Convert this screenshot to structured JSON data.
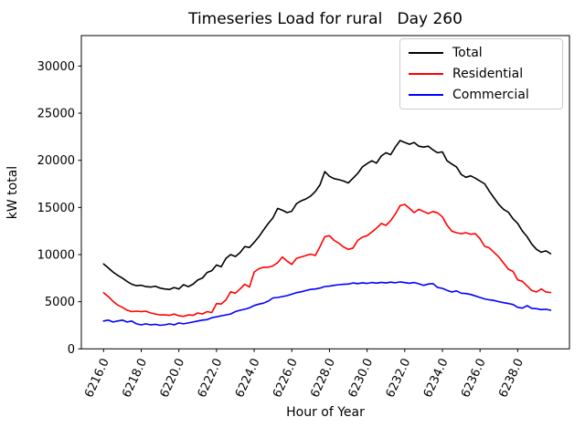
{
  "window": {
    "background_color": "#ffffff"
  },
  "chart_data": {
    "type": "line",
    "title": "Timeseries Load for rural   Day 260",
    "xlabel": "Hour of Year",
    "ylabel": "kW total",
    "grid": false,
    "legend_position": "upper right",
    "xlim": [
      6214.82,
      6240.75
    ],
    "ylim": [
      0,
      33230
    ],
    "xticks": [
      6216.0,
      6218.0,
      6220.0,
      6222.0,
      6224.0,
      6226.0,
      6228.0,
      6230.0,
      6232.0,
      6234.0,
      6236.0,
      6238.0
    ],
    "xtick_labels": [
      "6216.0",
      "6218.0",
      "6220.0",
      "6222.0",
      "6224.0",
      "6226.0",
      "6228.0",
      "6230.0",
      "6232.0",
      "6234.0",
      "6236.0",
      "6238.0"
    ],
    "yticks": [
      0,
      5000,
      10000,
      15000,
      20000,
      25000,
      30000
    ],
    "ytick_labels": [
      "0",
      "5000",
      "10000",
      "15000",
      "20000",
      "25000",
      "30000"
    ],
    "x": {
      "start": 6216.0,
      "step": 0.25,
      "count": 96
    },
    "series": [
      {
        "name": "Total",
        "color": "#000000",
        "values": [
          9000,
          8600,
          8150,
          7800,
          7500,
          7150,
          6850,
          6700,
          6750,
          6600,
          6550,
          6650,
          6450,
          6350,
          6300,
          6500,
          6350,
          6800,
          6600,
          6850,
          7300,
          7500,
          8100,
          8300,
          8900,
          8700,
          9600,
          10000,
          9800,
          10200,
          10850,
          10750,
          11300,
          11900,
          12600,
          13300,
          13900,
          14900,
          14700,
          14450,
          14600,
          15400,
          15700,
          15900,
          16200,
          16700,
          17400,
          18800,
          18300,
          18050,
          17950,
          17800,
          17600,
          18100,
          18600,
          19300,
          19650,
          19950,
          19700,
          20450,
          20800,
          20600,
          21400,
          22100,
          21900,
          21700,
          21900,
          21500,
          21400,
          21500,
          21100,
          20800,
          20900,
          19950,
          19600,
          19300,
          18500,
          18200,
          18350,
          18100,
          17800,
          17500,
          16700,
          16000,
          15300,
          14800,
          14500,
          13800,
          13300,
          12500,
          11900,
          11100,
          10550,
          10250,
          10400,
          10100
        ]
      },
      {
        "name": "Residential",
        "color": "#ff0000",
        "values": [
          5950,
          5550,
          5050,
          4650,
          4400,
          4100,
          3950,
          4000,
          3950,
          4000,
          3800,
          3700,
          3600,
          3600,
          3550,
          3700,
          3500,
          3450,
          3600,
          3550,
          3800,
          3700,
          3950,
          3850,
          4800,
          4750,
          5200,
          6050,
          5900,
          6350,
          6850,
          6550,
          8150,
          8500,
          8650,
          8650,
          8800,
          9150,
          9750,
          9300,
          8950,
          9600,
          9750,
          9900,
          10050,
          9900,
          10850,
          11900,
          12000,
          11500,
          11200,
          10800,
          10550,
          10700,
          11500,
          11850,
          12000,
          12400,
          12800,
          13300,
          13100,
          13600,
          14300,
          15200,
          15320,
          14900,
          14450,
          14800,
          14570,
          14350,
          14570,
          14420,
          14000,
          13120,
          12480,
          12320,
          12220,
          12320,
          12160,
          12220,
          11670,
          10870,
          10700,
          10220,
          9740,
          9100,
          8450,
          8220,
          7320,
          7160,
          6680,
          6190,
          6030,
          6350,
          6030,
          5970
        ]
      },
      {
        "name": "Commercial",
        "color": "#0000ff",
        "values": [
          2950,
          3050,
          2850,
          2950,
          3050,
          2850,
          2950,
          2650,
          2550,
          2650,
          2550,
          2600,
          2500,
          2550,
          2650,
          2550,
          2750,
          2650,
          2750,
          2850,
          2950,
          3050,
          3100,
          3300,
          3400,
          3500,
          3600,
          3700,
          3950,
          4090,
          4200,
          4350,
          4600,
          4740,
          4850,
          5060,
          5400,
          5450,
          5550,
          5640,
          5800,
          5960,
          6050,
          6190,
          6300,
          6350,
          6450,
          6610,
          6650,
          6740,
          6800,
          6840,
          6870,
          6990,
          6920,
          7010,
          6940,
          7040,
          6970,
          7060,
          6990,
          7080,
          7010,
          7100,
          7030,
          6960,
          7040,
          6900,
          6740,
          6870,
          6920,
          6500,
          6420,
          6200,
          6030,
          6150,
          5900,
          5870,
          5770,
          5610,
          5450,
          5290,
          5200,
          5130,
          5000,
          4900,
          4810,
          4700,
          4400,
          4320,
          4580,
          4300,
          4260,
          4160,
          4200,
          4090
        ]
      }
    ],
    "legend": [
      {
        "label": "Total",
        "color": "#000000"
      },
      {
        "label": "Residential",
        "color": "#ff0000"
      },
      {
        "label": "Commercial",
        "color": "#0000ff"
      }
    ]
  }
}
